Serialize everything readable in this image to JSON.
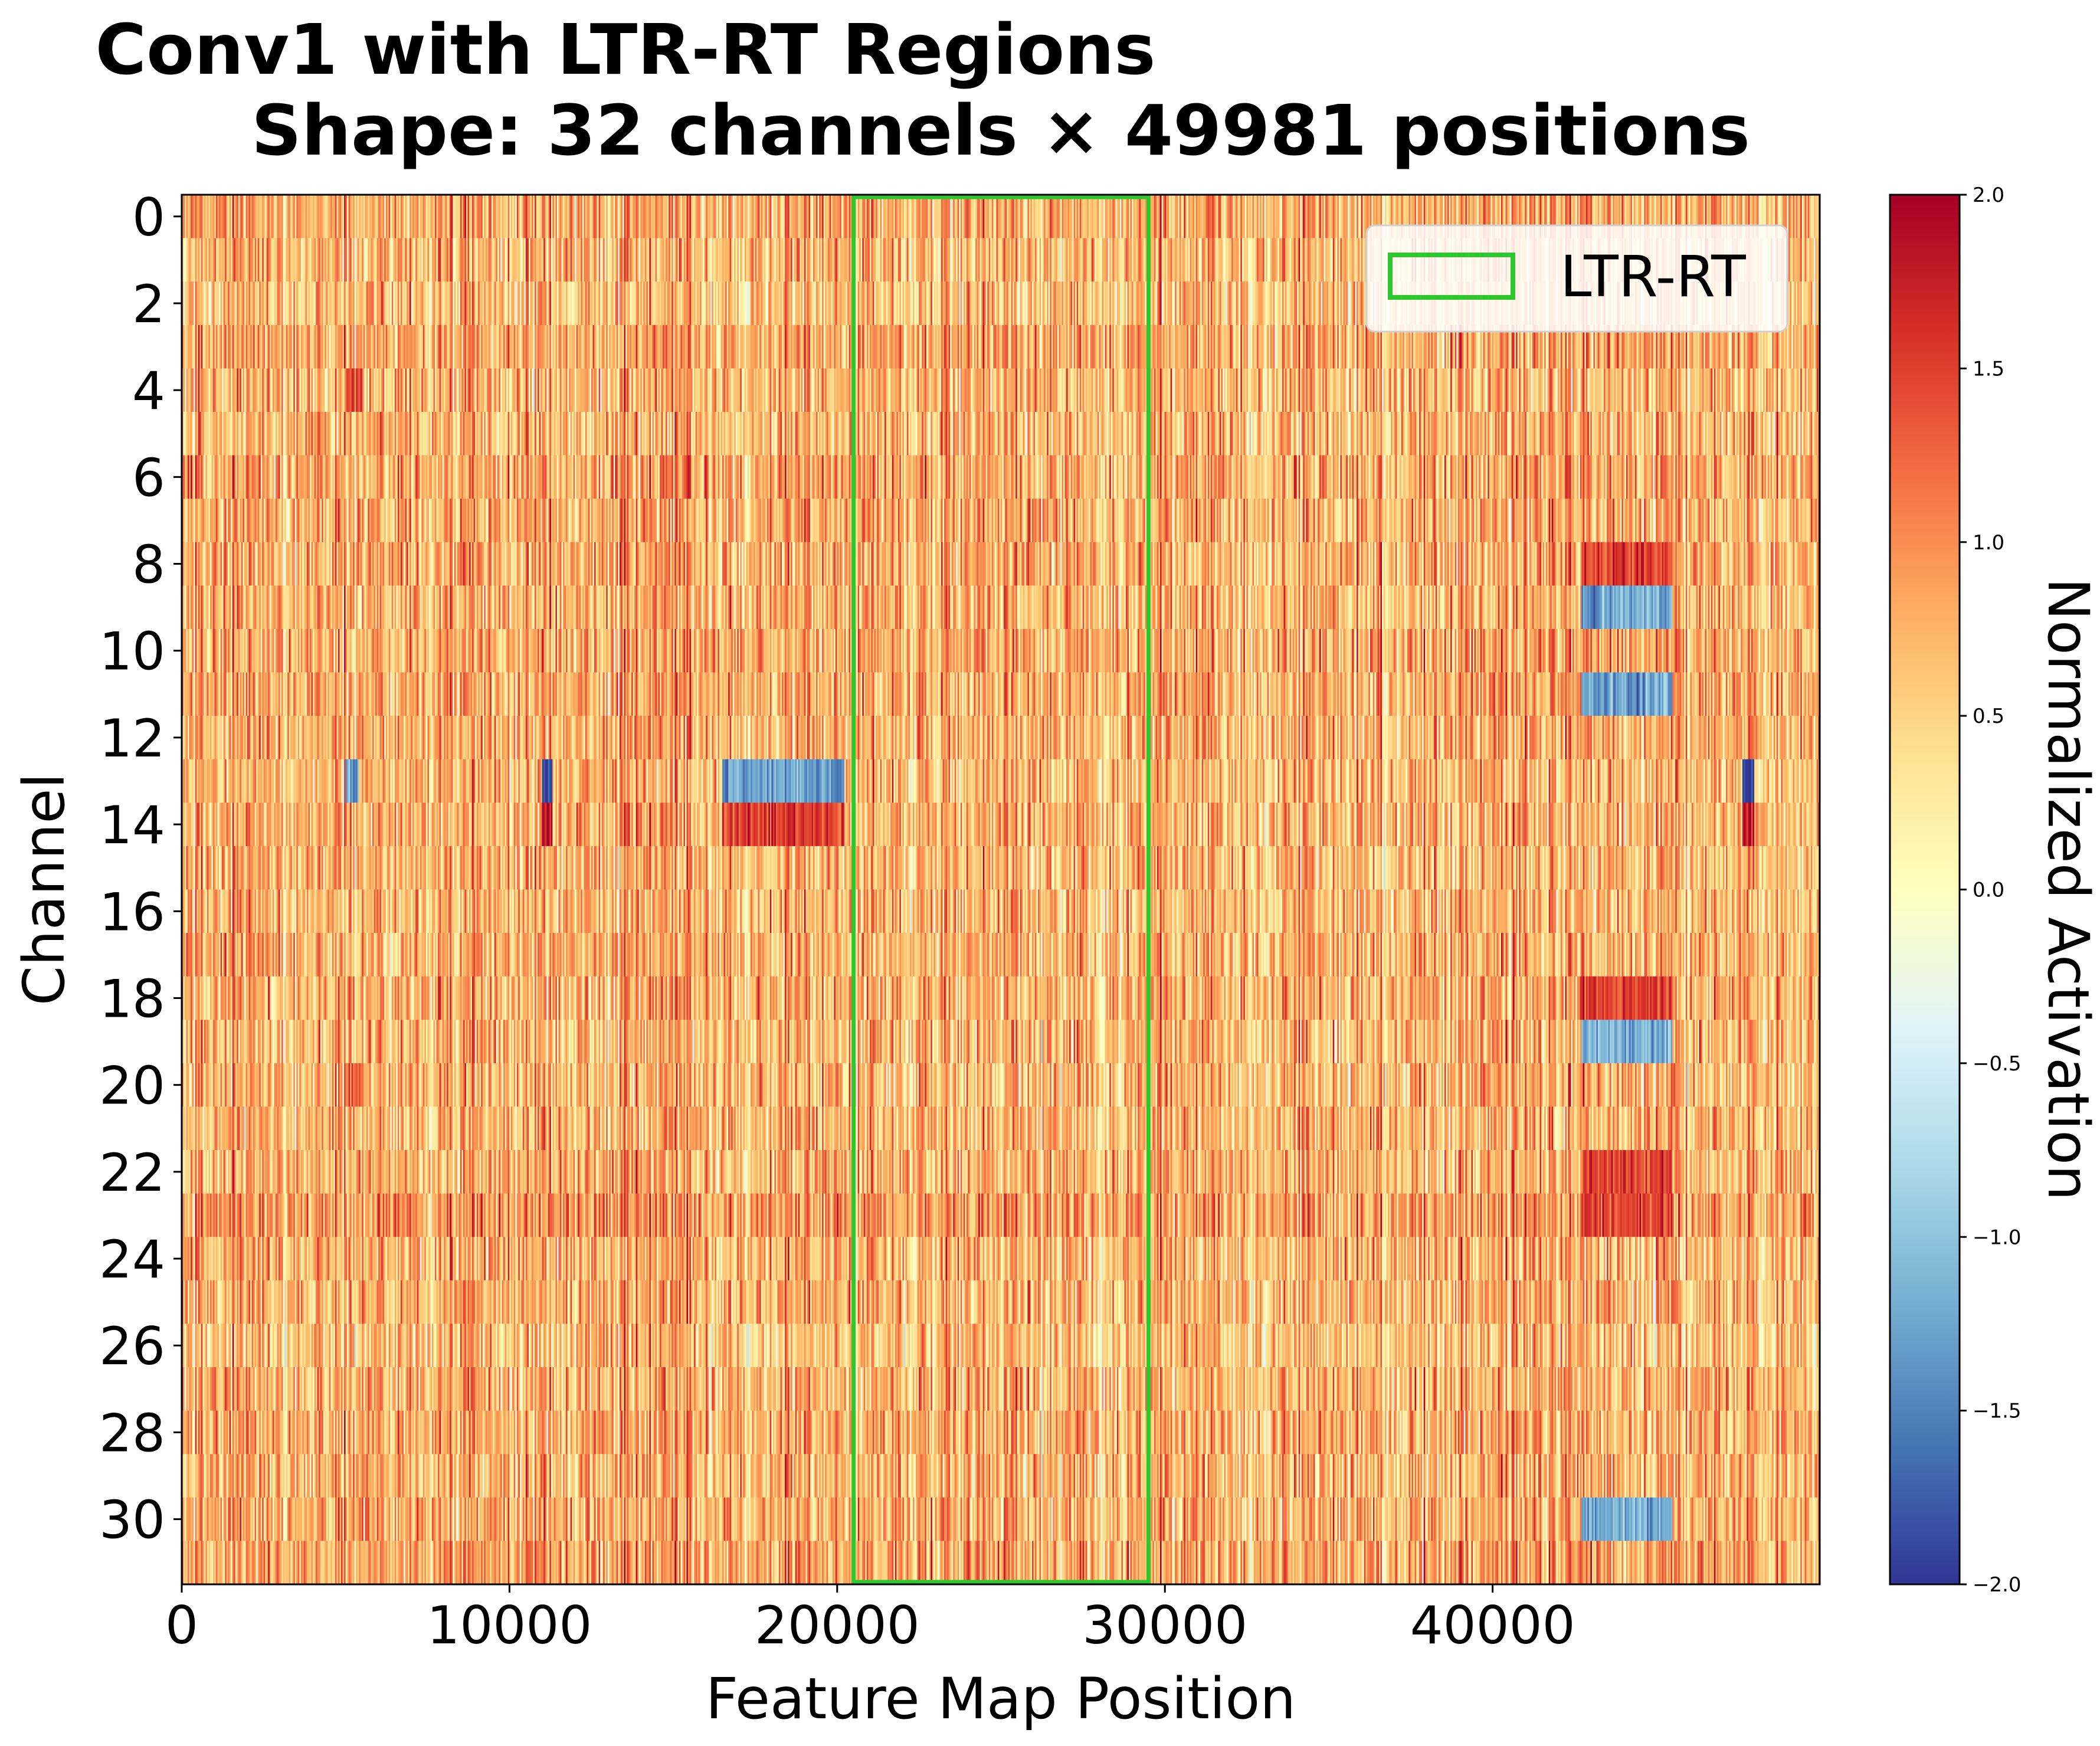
{
  "chart_data": {
    "type": "heatmap",
    "title_line1": "Conv1 with LTR-RT Regions",
    "title_line2": "Shape: 32 channels × 49981 positions",
    "xlabel": "Feature Map Position",
    "ylabel": "Channel",
    "colorbar_label": "Normalized Activation",
    "colormap": "RdYlBu_r",
    "colormap_stops": [
      "#313695",
      "#4575b4",
      "#74add1",
      "#abd9e9",
      "#e0f3f8",
      "#ffffbf",
      "#fee090",
      "#fdae61",
      "#f46d43",
      "#d73027",
      "#a50026"
    ],
    "xlim": [
      0,
      49981
    ],
    "ylim": [
      31.5,
      -0.5
    ],
    "vlim": [
      -2.0,
      2.0
    ],
    "n_channels": 32,
    "n_positions": 49981,
    "x_ticks": [
      0,
      10000,
      20000,
      30000,
      40000
    ],
    "x_tick_labels": [
      "0",
      "10000",
      "20000",
      "30000",
      "40000"
    ],
    "y_ticks": [
      0,
      2,
      4,
      6,
      8,
      10,
      12,
      14,
      16,
      18,
      20,
      22,
      24,
      26,
      28,
      30
    ],
    "y_tick_labels": [
      "0",
      "2",
      "4",
      "6",
      "8",
      "10",
      "12",
      "14",
      "16",
      "18",
      "20",
      "22",
      "24",
      "26",
      "28",
      "30"
    ],
    "colorbar_ticks": [
      2.0,
      1.5,
      1.0,
      0.5,
      0.0,
      -0.5,
      -1.0,
      -1.5,
      -2.0
    ],
    "colorbar_tick_labels": [
      "2.0",
      "1.5",
      "1.0",
      "0.5",
      "0.0",
      "−0.5",
      "−1.0",
      "−1.5",
      "−2.0"
    ],
    "baseline_value": 0.75,
    "region_label": "LTR-RT",
    "region_color": "#2fc72f",
    "regions": [
      {
        "start": 20500,
        "end": 29500
      }
    ],
    "legend_position": "upper right",
    "grid": false,
    "notable_bands": [
      {
        "channels": [
          13
        ],
        "x_range": [
          16500,
          20200
        ],
        "value": -1.3
      },
      {
        "channels": [
          14
        ],
        "x_range": [
          16500,
          20200
        ],
        "value": 1.5
      },
      {
        "channels": [
          13
        ],
        "x_range": [
          11000,
          11300
        ],
        "value": -1.9
      },
      {
        "channels": [
          14
        ],
        "x_range": [
          11000,
          11300
        ],
        "value": 1.9
      },
      {
        "channels": [
          13
        ],
        "x_range": [
          5000,
          5400
        ],
        "value": -1.4
      },
      {
        "channels": [
          8,
          18,
          22,
          23
        ],
        "x_range": [
          42700,
          45500
        ],
        "value": 1.5
      },
      {
        "channels": [
          9,
          11,
          19,
          30
        ],
        "x_range": [
          42700,
          45500
        ],
        "value": -1.2
      },
      {
        "channels": [
          13
        ],
        "x_range": [
          47600,
          48000
        ],
        "value": -1.9
      },
      {
        "channels": [
          14
        ],
        "x_range": [
          47600,
          48000
        ],
        "value": 1.8
      },
      {
        "channels": [
          4,
          20
        ],
        "x_range": [
          5000,
          5500
        ],
        "value": 1.4
      }
    ]
  }
}
